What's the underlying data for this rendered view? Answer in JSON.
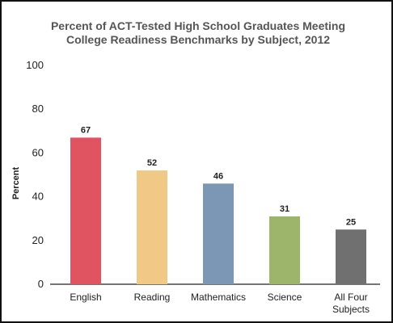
{
  "chart_data": {
    "type": "bar",
    "title_lines": [
      "Percent of ACT-Tested High School Graduates Meeting",
      "College Readiness Benchmarks by Subject, 2012"
    ],
    "xlabel": "",
    "ylabel": "Percent",
    "ylim": [
      0,
      100
    ],
    "yticks": [
      0,
      20,
      40,
      60,
      80,
      100
    ],
    "grid": false,
    "legend": "none",
    "categories": [
      [
        "English"
      ],
      [
        "Reading"
      ],
      [
        "Mathematics"
      ],
      [
        "Science"
      ],
      [
        "All Four",
        "Subjects"
      ]
    ],
    "values": [
      67,
      52,
      46,
      31,
      25
    ],
    "colors": [
      "#e05360",
      "#efc985",
      "#7c97b5",
      "#9db56b",
      "#707070"
    ]
  }
}
